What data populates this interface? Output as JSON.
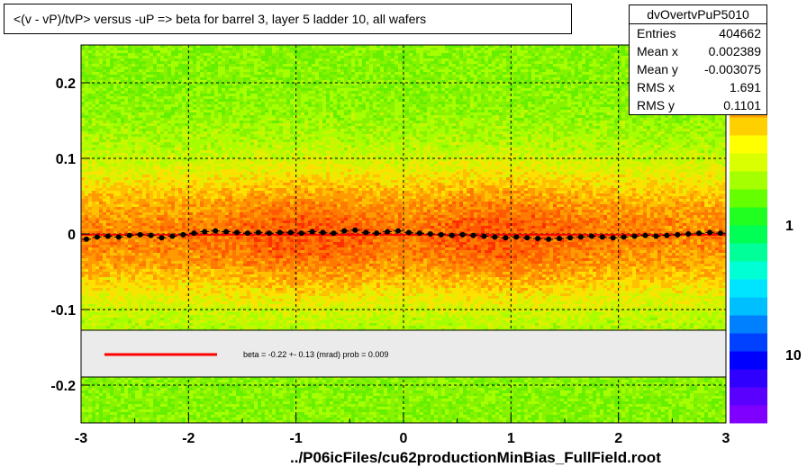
{
  "title": "<(v - vP)/tvP> versus  -uP => beta for barrel 3, layer 5 ladder 10, all wafers",
  "stats": {
    "name": "dvOvertvPuP5010",
    "rows": [
      {
        "label": "Entries",
        "value": "404662"
      },
      {
        "label": "Mean x",
        "value": "0.002389"
      },
      {
        "label": "Mean y",
        "value": "-0.003075"
      },
      {
        "label": "RMS x",
        "value": "1.691"
      },
      {
        "label": "RMS y",
        "value": "0.1101"
      }
    ]
  },
  "footer": "../P06icFiles/cu62productionMinBias_FullField.root",
  "legend": {
    "text": "beta =   -0.22 +-  0.13 (mrad) prob = 0.009",
    "line_color": "#ff0000"
  },
  "colors": {
    "fit_line": "#ff0000",
    "profile_points": "#000000",
    "grid": "#000000"
  },
  "chart_data": {
    "type": "heatmap",
    "title": "<(v - vP)/tvP> versus  -uP => beta for barrel 3, layer 5 ladder 10, all wafers",
    "xlabel": "",
    "ylabel": "",
    "xlim": [
      -3,
      3
    ],
    "ylim": [
      -0.25,
      0.25
    ],
    "x_ticks": [
      -3,
      -2,
      -1,
      0,
      1,
      2,
      3
    ],
    "x_tick_labels": [
      "-3",
      "-2",
      "-1",
      "0",
      "1",
      "2",
      "3"
    ],
    "y_ticks": [
      -0.2,
      -0.1,
      0,
      0.1,
      0.2
    ],
    "y_tick_labels": [
      "-0.2",
      "-0.1",
      "0",
      "0.1",
      "0.2"
    ],
    "grid": true,
    "colorbar": {
      "scale": "log",
      "tick_labels": [
        "1",
        "10"
      ],
      "colors": [
        "#7f00ff",
        "#5a00ff",
        "#3000ff",
        "#0000ff",
        "#0040ff",
        "#0080ff",
        "#00bfff",
        "#00e5ff",
        "#00ffd5",
        "#00ff99",
        "#00ff55",
        "#20ff20",
        "#66ff00",
        "#a6ff00",
        "#d9ff00",
        "#ffff00",
        "#ffd000",
        "#ff9f00",
        "#ff6e00",
        "#ff3d00",
        "#ff0000"
      ]
    },
    "profile": {
      "name": "profile",
      "x": [
        -2.95,
        -2.85,
        -2.75,
        -2.65,
        -2.55,
        -2.45,
        -2.35,
        -2.25,
        -2.15,
        -2.05,
        -1.95,
        -1.85,
        -1.75,
        -1.65,
        -1.55,
        -1.45,
        -1.35,
        -1.25,
        -1.15,
        -1.05,
        -0.95,
        -0.85,
        -0.75,
        -0.65,
        -0.55,
        -0.45,
        -0.35,
        -0.25,
        -0.15,
        -0.05,
        0.05,
        0.15,
        0.25,
        0.35,
        0.45,
        0.55,
        0.65,
        0.75,
        0.85,
        0.95,
        1.05,
        1.15,
        1.25,
        1.35,
        1.45,
        1.55,
        1.65,
        1.75,
        1.85,
        1.95,
        2.05,
        2.15,
        2.25,
        2.35,
        2.45,
        2.55,
        2.65,
        2.75,
        2.85,
        2.95
      ],
      "y": [
        -0.007,
        -0.004,
        -0.003,
        -0.004,
        -0.002,
        -0.001,
        -0.002,
        -0.005,
        -0.003,
        -0.001,
        0.001,
        0.003,
        0.004,
        0.003,
        0.002,
        0.001,
        0.002,
        0.001,
        0.002,
        0.002,
        0.001,
        0.003,
        0.002,
        0.001,
        0.004,
        0.005,
        0.002,
        0.001,
        0.003,
        0.004,
        0.002,
        0.001,
        0.0,
        -0.001,
        -0.002,
        -0.001,
        -0.002,
        -0.003,
        -0.004,
        -0.005,
        -0.004,
        -0.005,
        -0.006,
        -0.007,
        -0.006,
        -0.005,
        -0.004,
        -0.003,
        -0.004,
        -0.005,
        -0.004,
        -0.003,
        -0.002,
        -0.003,
        -0.002,
        -0.001,
        0.0,
        0.001,
        0.002,
        0.001
      ]
    },
    "fit": {
      "name": "beta",
      "x": [
        -3,
        3
      ],
      "y": [
        -0.001,
        -0.001
      ]
    }
  }
}
